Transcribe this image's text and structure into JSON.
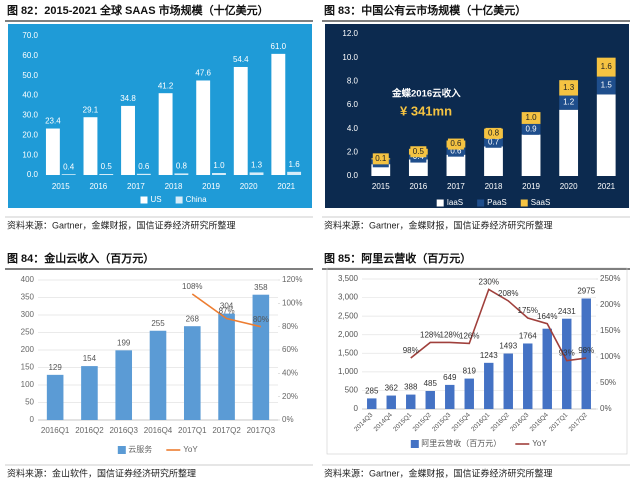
{
  "chart_data": [
    {
      "type": "bar",
      "title": "图 82：2015-2021 全球 SAAS 市场规模（十亿美元）",
      "source": "资料来源：Gartner，金蝶财报，国信证券经济研究所整理",
      "categories": [
        "2015",
        "2016",
        "2017",
        "2018",
        "2019",
        "2020",
        "2021"
      ],
      "series": [
        {
          "name": "US",
          "color": "#ffffff",
          "values": [
            23.4,
            29.1,
            34.8,
            41.2,
            47.6,
            54.4,
            61
          ],
          "value_labels": [
            "23.4",
            "29.1",
            "34.8",
            "41.2",
            "47.6",
            "54.4",
            "61.0"
          ]
        },
        {
          "name": "China",
          "color": "#d6ecf8",
          "values": [
            0.4,
            0.5,
            0.6,
            0.8,
            1,
            1.3,
            1.6
          ],
          "value_labels": [
            "0.4",
            "0.5",
            "0.6",
            "0.8",
            "1.0",
            "1.3",
            "1.6"
          ]
        }
      ],
      "ylim": [
        0,
        70
      ],
      "yticks": [
        {
          "value": 0,
          "label": "0.0"
        },
        {
          "value": 10,
          "label": "10.0"
        },
        {
          "value": 20,
          "label": "20.0"
        },
        {
          "value": 30,
          "label": "30.0"
        },
        {
          "value": 40,
          "label": "40.0"
        },
        {
          "value": 50,
          "label": "50.0"
        },
        {
          "value": 60,
          "label": "60.0"
        },
        {
          "value": 70,
          "label": "70.0"
        }
      ],
      "grid": false
    },
    {
      "type": "stacked_bar",
      "title": "图 83：中国公有云市场规模（十亿美元）",
      "source": "资料来源：Gartner，金蝶财报，国信证券经济研究所整理",
      "categories": [
        "2015",
        "2016",
        "2017",
        "2018",
        "2019",
        "2020",
        "2021"
      ],
      "series": [
        {
          "name": "IaaS",
          "color": "#ffffff",
          "values": [
            1.0,
            1.4,
            1.8,
            2.5,
            3.5,
            5.6,
            6.9
          ]
        },
        {
          "name": "PaaS",
          "color": "#1f4e8c",
          "values": [
            0.4,
            0.4,
            0.6,
            0.7,
            0.9,
            1.2,
            1.5
          ],
          "value_labels": [
            "0.4",
            "0.4",
            "0.6",
            "0.7",
            "0.9",
            "1.2",
            "1.5"
          ]
        },
        {
          "name": "SaaS",
          "color": "#f5c342",
          "values": [
            0.1,
            0.5,
            0.6,
            0.8,
            1,
            1.3,
            1.6
          ],
          "value_labels": [
            "0.1",
            "0.5",
            "0.6",
            "0.8",
            "1.0",
            "1.3",
            "1.6"
          ]
        }
      ],
      "annotations": [
        "金蝶2016云收入",
        "¥ 341mn"
      ],
      "ylim": [
        0,
        12
      ],
      "yticks": [
        {
          "value": 0,
          "label": "0.0"
        },
        {
          "value": 2,
          "label": "2.0"
        },
        {
          "value": 4,
          "label": "4.0"
        },
        {
          "value": 6,
          "label": "6.0"
        },
        {
          "value": 8,
          "label": "8.0"
        },
        {
          "value": 10,
          "label": "10.0"
        },
        {
          "value": 12,
          "label": "12.0"
        }
      ],
      "grid": false
    },
    {
      "type": "bar_line",
      "title": "图 84：金山云收入（百万元）",
      "source": "资料来源：金山软件，国信证券经济研究所整理",
      "categories": [
        "2016Q1",
        "2016Q2",
        "2016Q3",
        "2016Q4",
        "2017Q1",
        "2017Q2",
        "2017Q3"
      ],
      "series": [
        {
          "name": "云服务",
          "color": "#5b9bd5",
          "values": [
            129,
            154,
            199,
            255,
            268,
            304,
            358
          ],
          "value_labels": [
            "129",
            "154",
            "199",
            "255",
            "268",
            "304",
            "358"
          ]
        },
        {
          "name": "YoY",
          "color": "#ed7d31",
          "axis": "y2",
          "values": [
            null,
            null,
            null,
            null,
            108,
            87,
            80
          ],
          "value_labels": [
            null,
            null,
            null,
            null,
            "108%",
            "87%",
            "80%"
          ]
        }
      ],
      "ylim": [
        0,
        400
      ],
      "yticks": [
        0,
        50,
        100,
        150,
        200,
        250,
        300,
        350,
        400
      ],
      "y2lim": [
        0,
        120
      ],
      "y2ticks": [
        {
          "value": 0,
          "label": "0%"
        },
        {
          "value": 20,
          "label": "20%"
        },
        {
          "value": 40,
          "label": "40%"
        },
        {
          "value": 60,
          "label": "60%"
        },
        {
          "value": 80,
          "label": "80%"
        },
        {
          "value": 100,
          "label": "100%"
        },
        {
          "value": 120,
          "label": "120%"
        }
      ],
      "grid": true
    },
    {
      "type": "bar_line",
      "title": "图 85：阿里云营收（百万元）",
      "source": "资料来源：Gartner，金蝶财报，国信证券经济研究所整理",
      "categories": [
        "2014Q3",
        "2014Q4",
        "2015Q1",
        "2015Q2",
        "2015Q3",
        "2015Q4",
        "2016Q1",
        "2016Q2",
        "2016Q3",
        "2016Q4",
        "2017Q1",
        "2017Q2"
      ],
      "series": [
        {
          "name": "阿里云营收（百万元）",
          "color": "#4472c4",
          "values": [
            285,
            362,
            388,
            485,
            649,
            819,
            1243,
            1493,
            1764,
            2162,
            2431,
            2975
          ],
          "value_labels": [
            "285",
            "362",
            "388",
            "485",
            "649",
            "819",
            "1243",
            "1493",
            "1764",
            null,
            "2431",
            "2975"
          ]
        },
        {
          "name": "YoY",
          "color": "#a0403c",
          "axis": "y2",
          "values": [
            null,
            null,
            98,
            128,
            128,
            126,
            230,
            208,
            175,
            164,
            93,
            98
          ],
          "value_labels": [
            null,
            null,
            "98%",
            "128%",
            "128%",
            "126%",
            "230%",
            "208%",
            "175%",
            "164%",
            "93%",
            "98%"
          ]
        }
      ],
      "ylim": [
        0,
        3500
      ],
      "yticks": [
        0,
        500,
        {
          "value": 1000,
          "label": "1,000"
        },
        {
          "value": 1500,
          "label": "1,500"
        },
        {
          "value": 2000,
          "label": "2,000"
        },
        {
          "value": 2500,
          "label": "2,500"
        },
        {
          "value": 3000,
          "label": "3,000"
        },
        {
          "value": 3500,
          "label": "3,500"
        }
      ],
      "y2lim": [
        0,
        250
      ],
      "y2ticks": [
        {
          "value": 0,
          "label": "0%"
        },
        {
          "value": 50,
          "label": "50%"
        },
        {
          "value": 100,
          "label": "100%"
        },
        {
          "value": 150,
          "label": "150%"
        },
        {
          "value": 200,
          "label": "200%"
        },
        {
          "value": 250,
          "label": "250%"
        }
      ],
      "grid": true
    }
  ]
}
